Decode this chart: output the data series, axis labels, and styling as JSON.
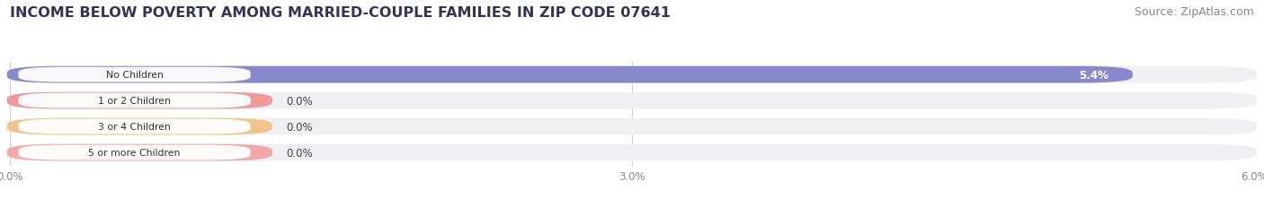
{
  "title": "INCOME BELOW POVERTY AMONG MARRIED-COUPLE FAMILIES IN ZIP CODE 07641",
  "source": "Source: ZipAtlas.com",
  "categories": [
    "No Children",
    "1 or 2 Children",
    "3 or 4 Children",
    "5 or more Children"
  ],
  "values": [
    5.4,
    0.0,
    0.0,
    0.0
  ],
  "bar_colors": [
    "#8888cc",
    "#f09090",
    "#f0c080",
    "#f4a0a0"
  ],
  "background_color": "#ffffff",
  "bar_bg_color": "#f0f0f4",
  "xlim": [
    0,
    6.0
  ],
  "xticks": [
    0.0,
    3.0,
    6.0
  ],
  "xtick_labels": [
    "0.0%",
    "3.0%",
    "6.0%"
  ],
  "title_fontsize": 11.5,
  "source_fontsize": 9,
  "bar_height": 0.62,
  "figsize": [
    14.06,
    2.32
  ],
  "dpi": 100
}
